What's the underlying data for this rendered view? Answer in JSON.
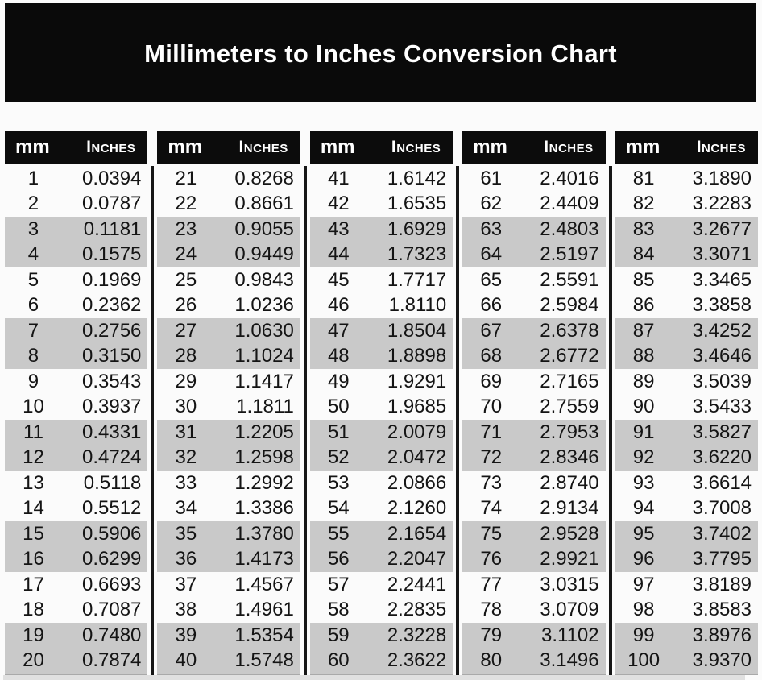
{
  "chart_data": {
    "type": "table",
    "title": "Millimeters to Inches Conversion Chart",
    "columns": [
      "mm",
      "Inches"
    ],
    "layout": {
      "column_groups": 5,
      "rows_per_group": 20,
      "row_banding": "rows shaded gray in pairs (rows 3-4, 7-8, 11-12, 15-16, 19-20 of each group)"
    },
    "groups": [
      {
        "mm": [
          1,
          2,
          3,
          4,
          5,
          6,
          7,
          8,
          9,
          10,
          11,
          12,
          13,
          14,
          15,
          16,
          17,
          18,
          19,
          20
        ],
        "inches": [
          "0.0394",
          "0.0787",
          "0.1181",
          "0.1575",
          "0.1969",
          "0.2362",
          "0.2756",
          "0.3150",
          "0.3543",
          "0.3937",
          "0.4331",
          "0.4724",
          "0.5118",
          "0.5512",
          "0.5906",
          "0.6299",
          "0.6693",
          "0.7087",
          "0.7480",
          "0.7874"
        ]
      },
      {
        "mm": [
          21,
          22,
          23,
          24,
          25,
          26,
          27,
          28,
          29,
          30,
          31,
          32,
          33,
          34,
          35,
          36,
          37,
          38,
          39,
          40
        ],
        "inches": [
          "0.8268",
          "0.8661",
          "0.9055",
          "0.9449",
          "0.9843",
          "1.0236",
          "1.0630",
          "1.1024",
          "1.1417",
          "1.1811",
          "1.2205",
          "1.2598",
          "1.2992",
          "1.3386",
          "1.3780",
          "1.4173",
          "1.4567",
          "1.4961",
          "1.5354",
          "1.5748"
        ]
      },
      {
        "mm": [
          41,
          42,
          43,
          44,
          45,
          46,
          47,
          48,
          49,
          50,
          51,
          52,
          53,
          54,
          55,
          56,
          57,
          58,
          59,
          60
        ],
        "inches": [
          "1.6142",
          "1.6535",
          "1.6929",
          "1.7323",
          "1.7717",
          "1.8110",
          "1.8504",
          "1.8898",
          "1.9291",
          "1.9685",
          "2.0079",
          "2.0472",
          "2.0866",
          "2.1260",
          "2.1654",
          "2.2047",
          "2.2441",
          "2.2835",
          "2.3228",
          "2.3622"
        ]
      },
      {
        "mm": [
          61,
          62,
          63,
          64,
          65,
          66,
          67,
          68,
          69,
          70,
          71,
          72,
          73,
          74,
          75,
          76,
          77,
          78,
          79,
          80
        ],
        "inches": [
          "2.4016",
          "2.4409",
          "2.4803",
          "2.5197",
          "2.5591",
          "2.5984",
          "2.6378",
          "2.6772",
          "2.7165",
          "2.7559",
          "2.7953",
          "2.8346",
          "2.8740",
          "2.9134",
          "2.9528",
          "2.9921",
          "3.0315",
          "3.0709",
          "3.1102",
          "3.1496"
        ]
      },
      {
        "mm": [
          81,
          82,
          83,
          84,
          85,
          86,
          87,
          88,
          89,
          90,
          91,
          92,
          93,
          94,
          95,
          96,
          97,
          98,
          99,
          100
        ],
        "inches": [
          "3.1890",
          "3.2283",
          "3.2677",
          "3.3071",
          "3.3465",
          "3.3858",
          "3.4252",
          "3.4646",
          "3.5039",
          "3.5433",
          "3.5827",
          "3.6220",
          "3.6614",
          "3.7008",
          "3.7402",
          "3.7795",
          "3.8189",
          "3.8583",
          "3.8976",
          "3.9370"
        ]
      }
    ]
  },
  "colors": {
    "banner_bg": "#0a0a0a",
    "header_bg": "#0c0c0c",
    "band_gray": "#c9c9c9",
    "divider": "#161616",
    "text": "#141414",
    "title_text": "#ffffff",
    "page_bg": "#fbfbfb"
  }
}
